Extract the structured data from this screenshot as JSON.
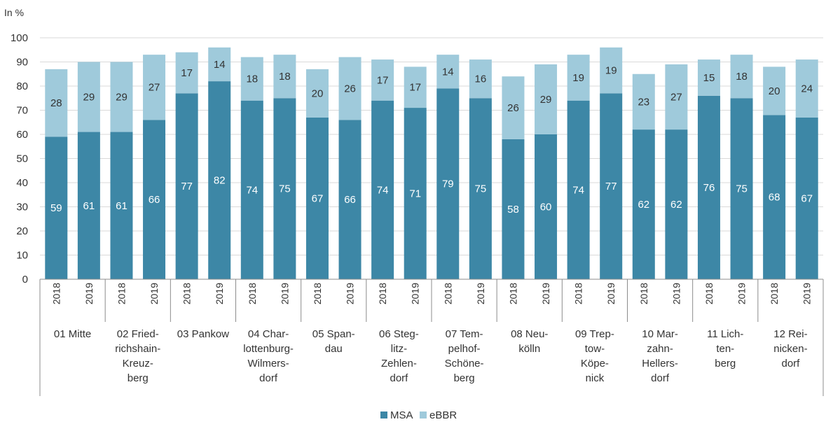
{
  "chart_data": {
    "type": "bar",
    "stacked": true,
    "y_unit_label": "In %",
    "ylim": [
      0,
      100
    ],
    "y_ticks": [
      0,
      10,
      20,
      30,
      40,
      50,
      60,
      70,
      80,
      90,
      100
    ],
    "grid": "horizontal",
    "legend_position": "bottom",
    "groups": [
      {
        "name": [
          "01 Mitte"
        ],
        "years": [
          "2018",
          "2019"
        ],
        "msa": [
          59,
          61
        ],
        "ebbr": [
          28,
          29
        ]
      },
      {
        "name": [
          "02 Fried-",
          "richshain-",
          "Kreuz-",
          "berg"
        ],
        "years": [
          "2018",
          "2019"
        ],
        "msa": [
          61,
          66
        ],
        "ebbr": [
          29,
          27
        ]
      },
      {
        "name": [
          "03 Pankow"
        ],
        "years": [
          "2018",
          "2019"
        ],
        "msa": [
          77,
          82
        ],
        "ebbr": [
          17,
          14
        ]
      },
      {
        "name": [
          "04 Char-",
          "lottenburg-",
          "Wilmers-",
          "dorf"
        ],
        "years": [
          "2018",
          "2019"
        ],
        "msa": [
          74,
          75
        ],
        "ebbr": [
          18,
          18
        ]
      },
      {
        "name": [
          "05 Span-",
          "dau"
        ],
        "years": [
          "2018",
          "2019"
        ],
        "msa": [
          67,
          66
        ],
        "ebbr": [
          20,
          26
        ]
      },
      {
        "name": [
          "06 Steg-",
          "litz-",
          "Zehlen-",
          "dorf"
        ],
        "years": [
          "2018",
          "2019"
        ],
        "msa": [
          74,
          71
        ],
        "ebbr": [
          17,
          17
        ]
      },
      {
        "name": [
          "07 Tem-",
          "pelhof-",
          "Schöne-",
          "berg"
        ],
        "years": [
          "2018",
          "2019"
        ],
        "msa": [
          79,
          75
        ],
        "ebbr": [
          14,
          16
        ]
      },
      {
        "name": [
          "08 Neu-",
          "kölln"
        ],
        "years": [
          "2018",
          "2019"
        ],
        "msa": [
          58,
          60
        ],
        "ebbr": [
          26,
          29
        ]
      },
      {
        "name": [
          "09 Trep-",
          "tow-",
          "Köpe-",
          "nick"
        ],
        "years": [
          "2018",
          "2019"
        ],
        "msa": [
          74,
          77
        ],
        "ebbr": [
          19,
          19
        ]
      },
      {
        "name": [
          "10 Mar-",
          "zahn-",
          "Hellers-",
          "dorf"
        ],
        "years": [
          "2018",
          "2019"
        ],
        "msa": [
          62,
          62
        ],
        "ebbr": [
          23,
          27
        ]
      },
      {
        "name": [
          "11 Lich-",
          "ten-",
          "berg"
        ],
        "years": [
          "2018",
          "2019"
        ],
        "msa": [
          76,
          75
        ],
        "ebbr": [
          15,
          18
        ]
      },
      {
        "name": [
          "12 Rei-",
          "nicken-",
          "dorf"
        ],
        "years": [
          "2018",
          "2019"
        ],
        "msa": [
          68,
          67
        ],
        "ebbr": [
          20,
          24
        ]
      }
    ],
    "series": [
      {
        "name": "MSA",
        "color": "#3d87a6",
        "label_color": "#ffffff"
      },
      {
        "name": "eBBR",
        "color": "#9fcadb",
        "label_color": "#333333"
      }
    ],
    "colors": {
      "grid": "#d9d9d9",
      "axis": "#8c8c8c"
    }
  }
}
